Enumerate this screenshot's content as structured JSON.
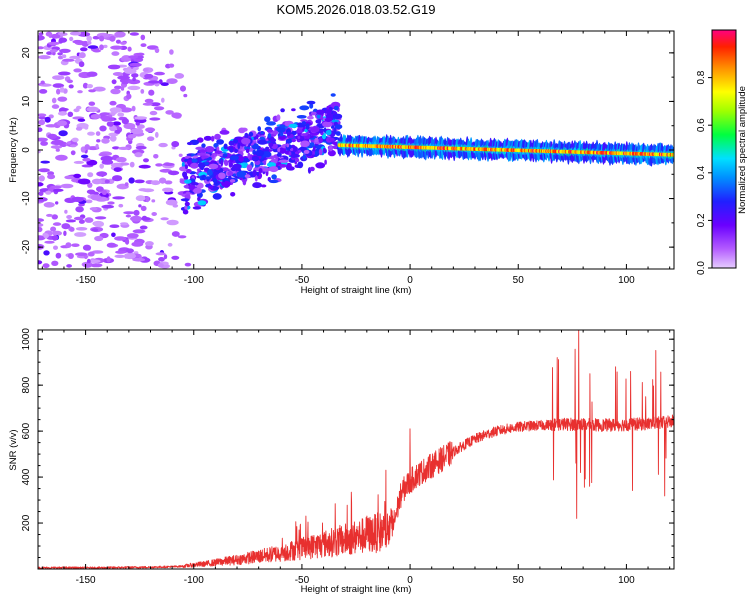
{
  "title": "KOM5.2026.018.03.52.G19",
  "colors": {
    "snr_line": "#e8302f",
    "frame": "#000000",
    "background": "#ffffff"
  },
  "chart_data": [
    {
      "id": "spectrogram",
      "type": "heatmap",
      "title": "KOM5.2026.018.03.52.G19",
      "xlabel": "Height of straight line (km)",
      "ylabel": "Frequency (Hz)",
      "xlim": [
        -172,
        122
      ],
      "ylim": [
        -24.5,
        24.5
      ],
      "xticks": [
        -150,
        -100,
        -50,
        0,
        50,
        100
      ],
      "yticks": [
        -20,
        -10,
        0,
        10,
        20
      ],
      "colorbar": {
        "label": "Normalized spectral amplitude",
        "range": [
          0,
          1
        ],
        "ticks": [
          0.0,
          0.2,
          0.4,
          0.6,
          0.8
        ],
        "colormap": "rainbow (magenta-purple-blue-cyan-green-yellow-orange-red)"
      },
      "features": [
        {
          "region": "scattered noise",
          "x_range": [
            -172,
            -100
          ],
          "freq_range": [
            -24,
            24
          ],
          "amplitude": 0.1
        },
        {
          "region": "rising diagonal band",
          "x_range": [
            -105,
            -33
          ],
          "freq_start": -6,
          "freq_end": 5,
          "amplitude": 0.2
        },
        {
          "region": "steady line near 0 Hz",
          "x_range": [
            -33,
            122
          ],
          "freq_start": 1,
          "freq_end": -1,
          "amplitude": 0.9
        }
      ]
    },
    {
      "id": "snr",
      "type": "line",
      "xlabel": "Height of straight line (km)",
      "ylabel": "SNR (v/v)",
      "xlim": [
        -172,
        122
      ],
      "ylim": [
        0,
        1040
      ],
      "xticks": [
        -150,
        -100,
        -50,
        0,
        50,
        100
      ],
      "yticks": [
        200,
        400,
        600,
        800,
        1000
      ],
      "series": [
        {
          "name": "SNR",
          "points": [
            [
              -172,
              5
            ],
            [
              -160,
              6
            ],
            [
              -150,
              5
            ],
            [
              -140,
              6
            ],
            [
              -130,
              7
            ],
            [
              -120,
              8
            ],
            [
              -110,
              10
            ],
            [
              -105,
              12
            ],
            [
              -100,
              18
            ],
            [
              -95,
              22
            ],
            [
              -90,
              28
            ],
            [
              -85,
              35
            ],
            [
              -80,
              40
            ],
            [
              -75,
              48
            ],
            [
              -70,
              55
            ],
            [
              -65,
              62
            ],
            [
              -60,
              70
            ],
            [
              -55,
              80
            ],
            [
              -50,
              88
            ],
            [
              -45,
              98
            ],
            [
              -40,
              108
            ],
            [
              -35,
              118
            ],
            [
              -30,
              128
            ],
            [
              -25,
              138
            ],
            [
              -20,
              148
            ],
            [
              -15,
              158
            ],
            [
              -10,
              168
            ],
            [
              -8,
              180
            ],
            [
              -6,
              260
            ],
            [
              -4,
              330
            ],
            [
              -2,
              360
            ],
            [
              0,
              380
            ],
            [
              2,
              400
            ],
            [
              5,
              420
            ],
            [
              10,
              450
            ],
            [
              15,
              480
            ],
            [
              20,
              510
            ],
            [
              25,
              540
            ],
            [
              30,
              565
            ],
            [
              35,
              585
            ],
            [
              40,
              600
            ],
            [
              45,
              610
            ],
            [
              50,
              618
            ],
            [
              55,
              622
            ],
            [
              60,
              625
            ],
            [
              65,
              628
            ],
            [
              70,
              630
            ],
            [
              75,
              630
            ],
            [
              80,
              628
            ],
            [
              85,
              627
            ],
            [
              90,
              626
            ],
            [
              95,
              627
            ],
            [
              100,
              628
            ],
            [
              105,
              630
            ],
            [
              110,
              632
            ],
            [
              115,
              635
            ],
            [
              120,
              640
            ],
            [
              122,
              645
            ]
          ]
        }
      ],
      "notable_peaks": [
        [
          -27,
          290
        ],
        [
          -20,
          230
        ],
        [
          0,
          610
        ],
        [
          68,
          920
        ],
        [
          78,
          1040
        ],
        [
          77,
          220
        ],
        [
          95,
          880
        ],
        [
          102,
          860
        ]
      ]
    }
  ]
}
